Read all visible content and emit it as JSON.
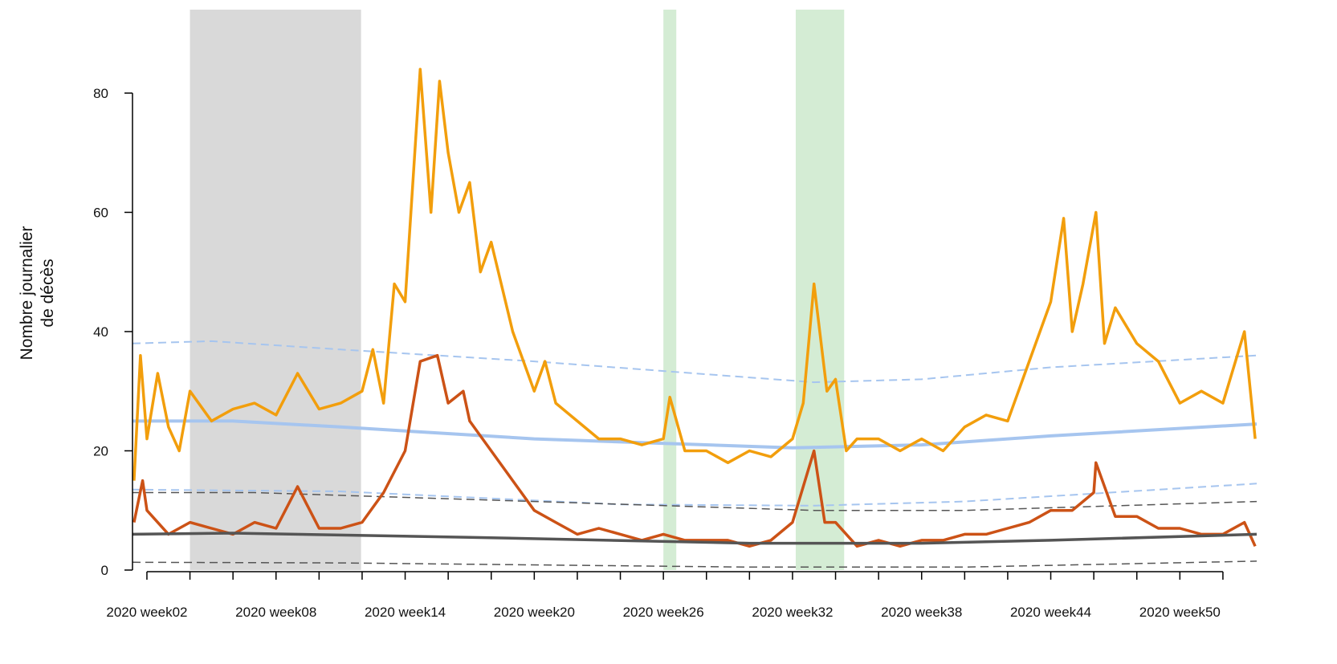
{
  "chart_data": {
    "type": "line",
    "ylabel": [
      "Nombre journalier",
      "de décès"
    ],
    "xlim": [
      1.33,
      53.57
    ],
    "ylim": [
      0,
      94
    ],
    "yticks": [
      0,
      20,
      40,
      60,
      80
    ],
    "xticks": [
      {
        "value": 2,
        "label": "2020 week02"
      },
      {
        "value": 8,
        "label": "2020 week08"
      },
      {
        "value": 14,
        "label": "2020 week14"
      },
      {
        "value": 20,
        "label": "2020 week20"
      },
      {
        "value": 26,
        "label": "2020 week26"
      },
      {
        "value": 32,
        "label": "2020 week32"
      },
      {
        "value": 38,
        "label": "2020 week38"
      },
      {
        "value": 44,
        "label": "2020 week44"
      },
      {
        "value": 50,
        "label": "2020 week50"
      }
    ],
    "xminorticks": [
      4,
      6,
      10,
      12,
      16,
      18,
      22,
      24,
      28,
      30,
      34,
      36,
      40,
      42,
      46,
      48,
      52
    ],
    "shaded_regions": [
      {
        "start": 4,
        "end": 11.95,
        "color": "#d9d9d9"
      },
      {
        "start": 26.0,
        "end": 26.6,
        "color": "#d4ecd4"
      },
      {
        "start": 32.15,
        "end": 34.4,
        "color": "#d4ecd4"
      }
    ],
    "series": [
      {
        "color": "#a6c5ef",
        "dashed": true,
        "width": 2,
        "x": [
          1.33,
          5,
          11,
          20,
          33,
          38,
          44,
          53.57
        ],
        "values": [
          38,
          38.4,
          37,
          35,
          31.5,
          32,
          34,
          36
        ]
      },
      {
        "color": "#a6c5ef",
        "dashed": false,
        "width": 4,
        "x": [
          1.33,
          6,
          11,
          20,
          32,
          38,
          44,
          53.57
        ],
        "values": [
          25,
          25,
          24,
          22,
          20.5,
          21,
          22.5,
          24.5
        ]
      },
      {
        "color": "#a6c5ef",
        "dashed": true,
        "width": 2,
        "x": [
          1.33,
          11,
          24,
          33,
          40,
          53.57
        ],
        "values": [
          13.5,
          13.2,
          11,
          10.8,
          11.5,
          14.5
        ]
      },
      {
        "color": "#555555",
        "dashed": true,
        "width": 1.5,
        "x": [
          1.33,
          7,
          20,
          33,
          40,
          53.57
        ],
        "values": [
          13,
          13,
          11.5,
          10,
          10,
          11.5
        ]
      },
      {
        "color": "#555555",
        "dashed": true,
        "width": 1.5,
        "x": [
          1.33,
          11,
          30,
          40,
          53.57
        ],
        "values": [
          1.3,
          1.2,
          0.5,
          0.5,
          1.5
        ]
      },
      {
        "color": "#f29e0c",
        "dashed": false,
        "width": 3.5,
        "x": [
          1.4,
          1.7,
          2,
          2.5,
          3,
          3.5,
          4,
          5,
          6,
          7,
          8,
          9,
          10,
          11,
          12,
          12.5,
          13,
          13.5,
          14,
          14.7,
          15.2,
          15.6,
          16,
          16.5,
          17,
          17.5,
          18,
          19,
          20,
          20.5,
          21,
          22,
          23,
          24,
          25,
          26,
          26.3,
          27,
          28,
          29,
          30,
          31,
          32,
          32.5,
          33,
          33.6,
          34,
          34.5,
          35,
          36,
          37,
          38,
          39,
          40,
          41,
          42,
          43,
          44,
          44.6,
          45,
          45.5,
          46.1,
          46.5,
          47,
          48,
          49,
          50,
          51,
          52,
          53,
          53.5
        ],
        "values": [
          15,
          36,
          22,
          33,
          24,
          20,
          30,
          25,
          27,
          28,
          26,
          33,
          27,
          28,
          30,
          37,
          28,
          48,
          45,
          84,
          60,
          82,
          70,
          60,
          65,
          50,
          55,
          40,
          30,
          35,
          28,
          25,
          22,
          22,
          21,
          22,
          29,
          20,
          20,
          18,
          20,
          19,
          22,
          28,
          48,
          30,
          32,
          20,
          22,
          22,
          20,
          22,
          20,
          24,
          26,
          25,
          35,
          45,
          59,
          40,
          48,
          60,
          38,
          44,
          38,
          35,
          28,
          30,
          28,
          40,
          22
        ]
      },
      {
        "color": "#cc5216",
        "dashed": false,
        "width": 3.5,
        "x": [
          1.4,
          1.8,
          2,
          3,
          4,
          5,
          6,
          7,
          8,
          9,
          10,
          11,
          12,
          13,
          14,
          14.7,
          15.5,
          16,
          16.7,
          17,
          18,
          19,
          20,
          21,
          22,
          23,
          24,
          25,
          26,
          27,
          28,
          29,
          30,
          31,
          32,
          33,
          33.5,
          34,
          35,
          36,
          37,
          38,
          39,
          40,
          41,
          42,
          43,
          44,
          45,
          46,
          46.1,
          47,
          48,
          49,
          50,
          51,
          52,
          53,
          53.5
        ],
        "values": [
          8,
          15,
          10,
          6,
          8,
          7,
          6,
          8,
          7,
          14,
          7,
          7,
          8,
          13,
          20,
          35,
          36,
          28,
          30,
          25,
          20,
          15,
          10,
          8,
          6,
          7,
          6,
          5,
          6,
          5,
          5,
          5,
          4,
          5,
          8,
          20,
          8,
          8,
          4,
          5,
          4,
          5,
          5,
          6,
          6,
          7,
          8,
          10,
          10,
          13,
          18,
          9,
          9,
          7,
          7,
          6,
          6,
          8,
          4
        ]
      },
      {
        "color": "#555555",
        "dashed": false,
        "width": 3.5,
        "x": [
          1.33,
          6,
          17,
          30,
          38,
          44,
          53.57
        ],
        "values": [
          6,
          6.2,
          5.5,
          4.5,
          4.5,
          5,
          6
        ]
      }
    ]
  }
}
